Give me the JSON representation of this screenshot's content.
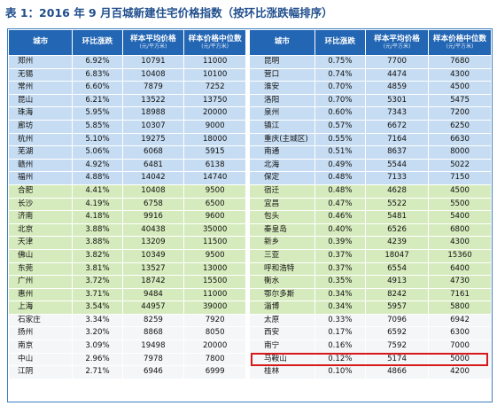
{
  "title": "表 1：2016 年 9 月百城新建住宅价格指数（按环比涨跌幅排序）",
  "headers": {
    "city": "城市",
    "change": "环比涨跌",
    "avg": "样本平均价格",
    "avg_unit": "(元/平方米)",
    "median": "样本价格中位数",
    "median_unit": "(元/平方米)"
  },
  "colors": {
    "header": "#2366b4",
    "blue_band": "#c6dcf2",
    "green_band": "#d6ebbd",
    "white_band": "#f4f6f8",
    "highlight": "#d7191c"
  },
  "left_rows": [
    {
      "city": "郑州",
      "change": "6.92%",
      "avg": "10791",
      "median": "11000",
      "band": "blue"
    },
    {
      "city": "无锡",
      "change": "6.83%",
      "avg": "10408",
      "median": "10100",
      "band": "blue"
    },
    {
      "city": "常州",
      "change": "6.60%",
      "avg": "7879",
      "median": "7252",
      "band": "blue"
    },
    {
      "city": "昆山",
      "change": "6.21%",
      "avg": "13522",
      "median": "13750",
      "band": "blue"
    },
    {
      "city": "珠海",
      "change": "5.95%",
      "avg": "18988",
      "median": "20000",
      "band": "blue"
    },
    {
      "city": "廊坊",
      "change": "5.85%",
      "avg": "10307",
      "median": "9000",
      "band": "blue"
    },
    {
      "city": "杭州",
      "change": "5.10%",
      "avg": "19275",
      "median": "18000",
      "band": "blue"
    },
    {
      "city": "芜湖",
      "change": "5.06%",
      "avg": "6068",
      "median": "5915",
      "band": "blue"
    },
    {
      "city": "赣州",
      "change": "4.92%",
      "avg": "6481",
      "median": "6138",
      "band": "blue"
    },
    {
      "city": "福州",
      "change": "4.88%",
      "avg": "14042",
      "median": "14740",
      "band": "blue"
    },
    {
      "city": "合肥",
      "change": "4.41%",
      "avg": "10408",
      "median": "9500",
      "band": "green"
    },
    {
      "city": "长沙",
      "change": "4.19%",
      "avg": "6758",
      "median": "6500",
      "band": "green"
    },
    {
      "city": "济南",
      "change": "4.18%",
      "avg": "9916",
      "median": "9600",
      "band": "green"
    },
    {
      "city": "北京",
      "change": "3.88%",
      "avg": "40438",
      "median": "35000",
      "band": "green"
    },
    {
      "city": "天津",
      "change": "3.88%",
      "avg": "13209",
      "median": "11500",
      "band": "green"
    },
    {
      "city": "佛山",
      "change": "3.82%",
      "avg": "10349",
      "median": "9500",
      "band": "green"
    },
    {
      "city": "东莞",
      "change": "3.81%",
      "avg": "13527",
      "median": "13000",
      "band": "green"
    },
    {
      "city": "广州",
      "change": "3.72%",
      "avg": "18742",
      "median": "15500",
      "band": "green"
    },
    {
      "city": "惠州",
      "change": "3.71%",
      "avg": "9484",
      "median": "11000",
      "band": "green"
    },
    {
      "city": "上海",
      "change": "3.54%",
      "avg": "44957",
      "median": "39000",
      "band": "green"
    },
    {
      "city": "石家庄",
      "change": "3.34%",
      "avg": "8259",
      "median": "7920",
      "band": "white"
    },
    {
      "city": "扬州",
      "change": "3.20%",
      "avg": "8868",
      "median": "8050",
      "band": "white"
    },
    {
      "city": "南京",
      "change": "3.09%",
      "avg": "19498",
      "median": "20000",
      "band": "white"
    },
    {
      "city": "中山",
      "change": "2.96%",
      "avg": "7978",
      "median": "7800",
      "band": "white"
    },
    {
      "city": "江阴",
      "change": "2.71%",
      "avg": "6946",
      "median": "6999",
      "band": "white"
    }
  ],
  "right_rows": [
    {
      "city": "昆明",
      "change": "0.75%",
      "avg": "7700",
      "median": "7680",
      "band": "blue"
    },
    {
      "city": "营口",
      "change": "0.74%",
      "avg": "4474",
      "median": "4300",
      "band": "blue"
    },
    {
      "city": "淮安",
      "change": "0.70%",
      "avg": "4859",
      "median": "4500",
      "band": "blue"
    },
    {
      "city": "洛阳",
      "change": "0.70%",
      "avg": "5301",
      "median": "5475",
      "band": "blue"
    },
    {
      "city": "泉州",
      "change": "0.60%",
      "avg": "7343",
      "median": "7200",
      "band": "blue"
    },
    {
      "city": "镇江",
      "change": "0.57%",
      "avg": "6672",
      "median": "6250",
      "band": "blue"
    },
    {
      "city": "重庆(主城区)",
      "change": "0.55%",
      "avg": "7164",
      "median": "6630",
      "band": "blue"
    },
    {
      "city": "南通",
      "change": "0.51%",
      "avg": "8637",
      "median": "8000",
      "band": "blue"
    },
    {
      "city": "北海",
      "change": "0.49%",
      "avg": "5544",
      "median": "5022",
      "band": "blue"
    },
    {
      "city": "保定",
      "change": "0.48%",
      "avg": "7133",
      "median": "7150",
      "band": "blue"
    },
    {
      "city": "宿迁",
      "change": "0.48%",
      "avg": "4628",
      "median": "4500",
      "band": "green"
    },
    {
      "city": "宜昌",
      "change": "0.47%",
      "avg": "5522",
      "median": "5500",
      "band": "green"
    },
    {
      "city": "包头",
      "change": "0.46%",
      "avg": "5481",
      "median": "5400",
      "band": "green"
    },
    {
      "city": "秦皇岛",
      "change": "0.40%",
      "avg": "6526",
      "median": "6800",
      "band": "green"
    },
    {
      "city": "新乡",
      "change": "0.39%",
      "avg": "4239",
      "median": "4300",
      "band": "green"
    },
    {
      "city": "三亚",
      "change": "0.37%",
      "avg": "18047",
      "median": "15360",
      "band": "green"
    },
    {
      "city": "呼和浩特",
      "change": "0.37%",
      "avg": "6554",
      "median": "6400",
      "band": "green"
    },
    {
      "city": "衡水",
      "change": "0.35%",
      "avg": "4913",
      "median": "4730",
      "band": "green"
    },
    {
      "city": "鄂尔多斯",
      "change": "0.34%",
      "avg": "8242",
      "median": "7161",
      "band": "green"
    },
    {
      "city": "淄博",
      "change": "0.34%",
      "avg": "5957",
      "median": "5800",
      "band": "green"
    },
    {
      "city": "太原",
      "change": "0.33%",
      "avg": "7096",
      "median": "6942",
      "band": "white"
    },
    {
      "city": "西安",
      "change": "0.17%",
      "avg": "6592",
      "median": "6300",
      "band": "white"
    },
    {
      "city": "南宁",
      "change": "0.16%",
      "avg": "7592",
      "median": "7000",
      "band": "white"
    },
    {
      "city": "马鞍山",
      "change": "0.12%",
      "avg": "5174",
      "median": "5000",
      "band": "white"
    },
    {
      "city": "桂林",
      "change": "0.10%",
      "avg": "4866",
      "median": "4200",
      "band": "white"
    }
  ]
}
